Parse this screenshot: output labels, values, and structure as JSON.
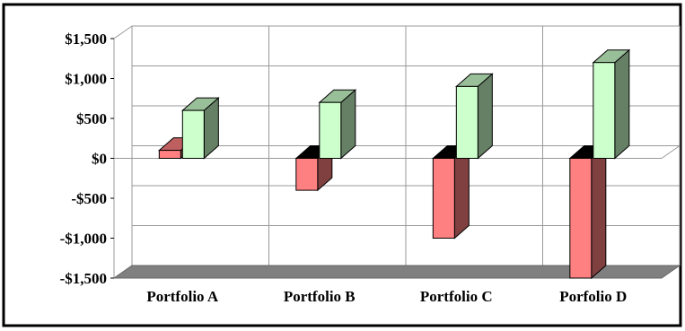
{
  "chart_data": {
    "type": "bar",
    "title": "",
    "xlabel": "",
    "ylabel": "",
    "categories": [
      "Portfolio  A",
      "Portfolio  B",
      "Portfolio  C",
      "Porfolio  D"
    ],
    "series": [
      {
        "values": [
          100,
          -400,
          -1000,
          -1550
        ],
        "color": "#ff8080"
      },
      {
        "values": [
          600,
          700,
          900,
          1200
        ],
        "color": "#ccffcc"
      }
    ],
    "ylim": [
      -1500,
      1500
    ],
    "yticks": [
      1500,
      1000,
      500,
      0,
      -500,
      -1000,
      -1500
    ],
    "ytick_labels": [
      "$1,500",
      "$1,000",
      "$500",
      "$0",
      "-$500",
      "-$1,000",
      "-$1,500"
    ],
    "grid": true,
    "legend": "none",
    "style": "3d"
  }
}
